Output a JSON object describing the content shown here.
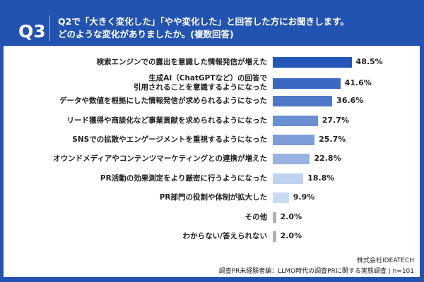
{
  "header": {
    "q": "Q3",
    "line1": "Q2で「大きく変化した」「やや変化した」と回答した方にお聞きします。",
    "line2": "どのような変化がありましたか。(複数回答)"
  },
  "chart_data": {
    "type": "bar",
    "orientation": "horizontal",
    "xlim": [
      0,
      100
    ],
    "categories": [
      "検索エンジンでの露出を意識した情報発信が増えた",
      "生成AI（ChatGPTなど）の回答で\n引用されることを意識するようになった",
      "データや数値を根拠にした情報発信が求められるようになった",
      "リード獲得や商談化など事業貢献を求められるようになった",
      "SNSでの拡散やエンゲージメントを重視するようになった",
      "オウンドメディアやコンテンツマーケティングとの連携が増えた",
      "PR活動の効果測定をより厳密に行うようになった",
      "PR部門の役割や体制が拡大した",
      "その他",
      "わからない/答えられない"
    ],
    "values": [
      48.5,
      41.6,
      36.6,
      27.7,
      25.7,
      22.8,
      18.8,
      9.9,
      2.0,
      2.0
    ],
    "labels": [
      "48.5%",
      "41.6%",
      "36.6%",
      "27.7%",
      "25.7%",
      "22.8%",
      "18.8%",
      "9.9%",
      "2.0%",
      "2.0%"
    ],
    "colors": [
      "#2456b8",
      "#3a68c2",
      "#4f79c8",
      "#6a8fd2",
      "#7c9cd8",
      "#98b3e2",
      "#bfd2ef",
      "#c9daf2",
      "#b0b0b0",
      "#b0b0b0"
    ]
  },
  "footer": {
    "company": "株式会社IDEATECH",
    "source": "調査PR未経験者編：LLMO時代の調査PRに関する実態調査 | n=101"
  }
}
